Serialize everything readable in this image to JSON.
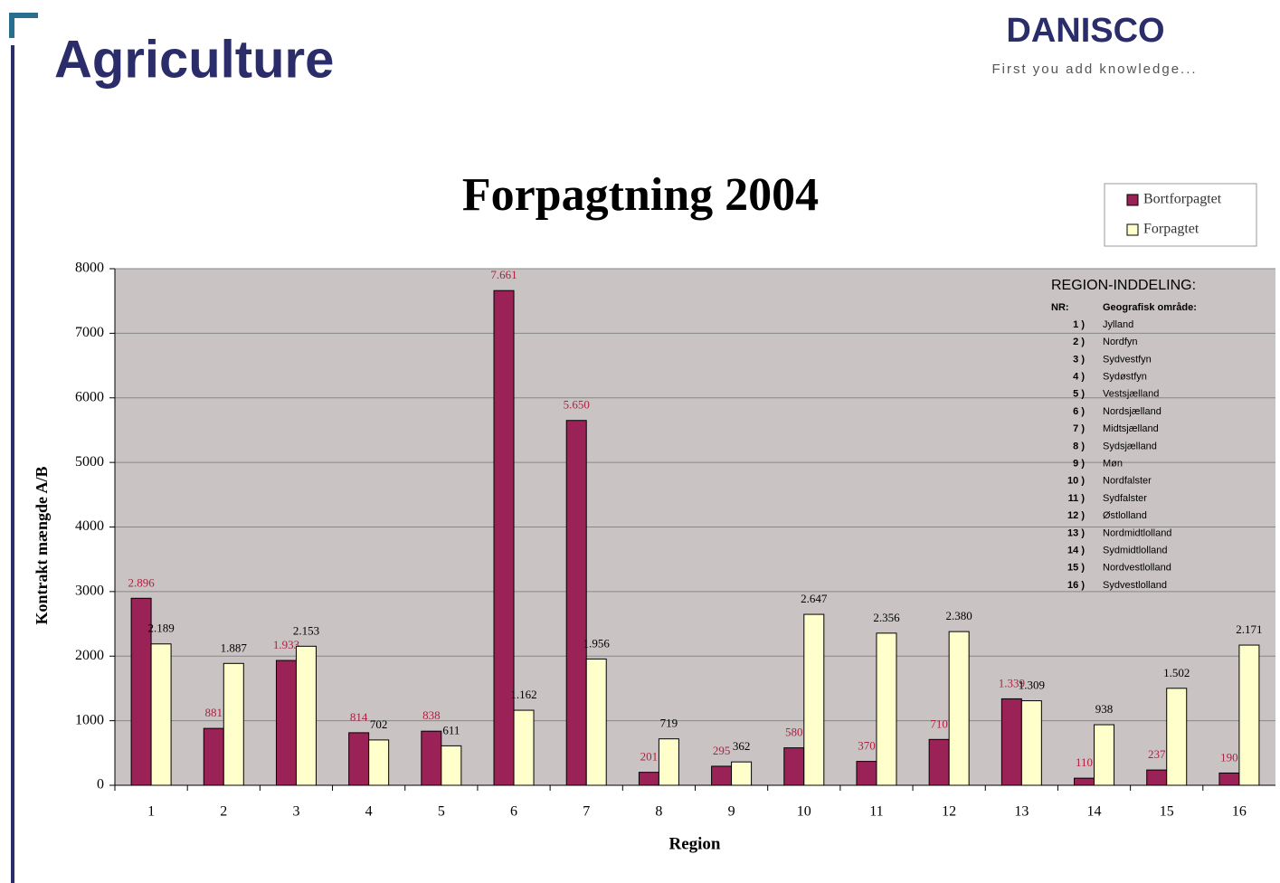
{
  "slide": {
    "title": "Agriculture",
    "logo": "DANISCO",
    "tagline": "First you add knowledge..."
  },
  "chart_data": {
    "type": "bar",
    "title": "Forpagtning 2004",
    "x_label": "Region",
    "y_label": "Kontrakt mængde A/B",
    "categories": [
      "1",
      "2",
      "3",
      "4",
      "5",
      "6",
      "7",
      "8",
      "9",
      "10",
      "11",
      "12",
      "13",
      "14",
      "15",
      "16"
    ],
    "series": [
      {
        "name": "Bortforpagtet",
        "color": "#9b2257",
        "values": [
          2896,
          881,
          1933,
          814,
          838,
          7661,
          5650,
          201,
          295,
          580,
          370,
          710,
          1339,
          110,
          237,
          190
        ],
        "value_labels": [
          "2.896",
          "881",
          "1.933",
          "814",
          "838",
          "7.661",
          "5.650",
          "201",
          "295",
          "580",
          "370",
          "710",
          "1.339",
          "110",
          "237",
          "190"
        ]
      },
      {
        "name": "Forpagtet",
        "color": "#ffffcc",
        "values": [
          2189,
          1887,
          2153,
          702,
          611,
          1162,
          1956,
          719,
          362,
          2647,
          2356,
          2380,
          1309,
          938,
          1502,
          2171
        ],
        "value_labels": [
          "2.189",
          "1.887",
          "2.153",
          "702",
          "611",
          "1.162",
          "1.956",
          "719",
          "362",
          "2.647",
          "2.356",
          "2.380",
          "1.309",
          "938",
          "1.502",
          "2.171"
        ]
      }
    ],
    "ylim": [
      0,
      8000
    ],
    "yticks": [
      0,
      1000,
      2000,
      3000,
      4000,
      5000,
      6000,
      7000,
      8000
    ],
    "grid": true,
    "legend": "top-right",
    "region_table": {
      "title": "REGION-INDDELING:",
      "headers": [
        "NR:",
        "Geografisk område:"
      ],
      "rows": [
        [
          "1 )",
          "Jylland"
        ],
        [
          "2 )",
          "Nordfyn"
        ],
        [
          "3 )",
          "Sydvestfyn"
        ],
        [
          "4 )",
          "Sydøstfyn"
        ],
        [
          "5 )",
          "Vestsjælland"
        ],
        [
          "6 )",
          "Nordsjælland"
        ],
        [
          "7 )",
          "Midtsjælland"
        ],
        [
          "8 )",
          "Sydsjælland"
        ],
        [
          "9 )",
          "Møn"
        ],
        [
          "10 )",
          "Nordfalster"
        ],
        [
          "11 )",
          "Sydfalster"
        ],
        [
          "12 )",
          "Østlolland"
        ],
        [
          "13 )",
          "Nordmidtlolland"
        ],
        [
          "14 )",
          "Sydmidtlolland"
        ],
        [
          "15 )",
          "Nordvestlolland"
        ],
        [
          "16 )",
          "Sydvestlolland"
        ]
      ]
    }
  }
}
